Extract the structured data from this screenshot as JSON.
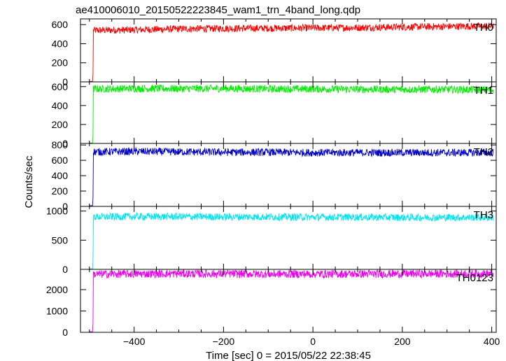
{
  "title": "ae410006010_20150522223845_wam1_trn_4band_long.qdp",
  "chart_data": {
    "type": "line",
    "title": "ae410006010_20150522223845_wam1_trn_4band_long.qdp",
    "xlabel": "Time [sec] 0 = 2015/05/22 22:38:45",
    "ylabel": "Counts/sec",
    "xlim": [
      -520,
      410
    ],
    "x_ticks": [
      -400,
      -200,
      0,
      200,
      400
    ],
    "grid": false,
    "series": [
      {
        "name": "TH0",
        "color": "#ff0000",
        "ylim": [
          0,
          660
        ],
        "y_ticks": [
          0,
          200,
          400,
          600
        ],
        "pre_start_level": 5,
        "onset_time": -492,
        "values": [
          {
            "x": -490,
            "y": 540
          },
          {
            "x": -400,
            "y": 545
          },
          {
            "x": -300,
            "y": 555
          },
          {
            "x": -200,
            "y": 560
          },
          {
            "x": -100,
            "y": 562
          },
          {
            "x": 0,
            "y": 565
          },
          {
            "x": 100,
            "y": 568
          },
          {
            "x": 200,
            "y": 575
          },
          {
            "x": 300,
            "y": 580
          },
          {
            "x": 400,
            "y": 585
          }
        ]
      },
      {
        "name": "TH1",
        "color": "#00ee00",
        "ylim": [
          0,
          650
        ],
        "y_ticks": [
          0,
          200,
          400,
          600
        ],
        "pre_start_level": 5,
        "onset_time": -492,
        "values": [
          {
            "x": -490,
            "y": 575
          },
          {
            "x": -400,
            "y": 580
          },
          {
            "x": -300,
            "y": 578
          },
          {
            "x": -200,
            "y": 580
          },
          {
            "x": -100,
            "y": 575
          },
          {
            "x": 0,
            "y": 575
          },
          {
            "x": 100,
            "y": 572
          },
          {
            "x": 200,
            "y": 570
          },
          {
            "x": 300,
            "y": 570
          },
          {
            "x": 400,
            "y": 565
          }
        ]
      },
      {
        "name": "TH2",
        "color": "#0000cc",
        "ylim": [
          0,
          820
        ],
        "y_ticks": [
          0,
          200,
          400,
          600,
          800
        ],
        "pre_start_level": 10,
        "onset_time": -492,
        "values": [
          {
            "x": -490,
            "y": 710
          },
          {
            "x": -400,
            "y": 715
          },
          {
            "x": -300,
            "y": 710
          },
          {
            "x": -200,
            "y": 705
          },
          {
            "x": -100,
            "y": 705
          },
          {
            "x": 0,
            "y": 700
          },
          {
            "x": 100,
            "y": 700
          },
          {
            "x": 200,
            "y": 700
          },
          {
            "x": 300,
            "y": 700
          },
          {
            "x": 400,
            "y": 700
          }
        ]
      },
      {
        "name": "TH3",
        "color": "#00e5ee",
        "ylim": [
          0,
          1080
        ],
        "y_ticks": [
          0,
          500,
          1000
        ],
        "pre_start_level": 10,
        "onset_time": -492,
        "values": [
          {
            "x": -490,
            "y": 900
          },
          {
            "x": -400,
            "y": 905
          },
          {
            "x": -300,
            "y": 905
          },
          {
            "x": -200,
            "y": 900
          },
          {
            "x": -100,
            "y": 900
          },
          {
            "x": 0,
            "y": 895
          },
          {
            "x": 100,
            "y": 895
          },
          {
            "x": 200,
            "y": 890
          },
          {
            "x": 300,
            "y": 890
          },
          {
            "x": 400,
            "y": 890
          }
        ]
      },
      {
        "name": "TH0123",
        "color": "#ee00ee",
        "ylim": [
          0,
          2950
        ],
        "y_ticks": [
          0,
          1000,
          2000
        ],
        "pre_start_level": 30,
        "onset_time": -492,
        "values": [
          {
            "x": -490,
            "y": 2720
          },
          {
            "x": -400,
            "y": 2740
          },
          {
            "x": -300,
            "y": 2745
          },
          {
            "x": -200,
            "y": 2740
          },
          {
            "x": -100,
            "y": 2730
          },
          {
            "x": 0,
            "y": 2730
          },
          {
            "x": 100,
            "y": 2735
          },
          {
            "x": 200,
            "y": 2740
          },
          {
            "x": 300,
            "y": 2745
          },
          {
            "x": 400,
            "y": 2750
          }
        ]
      }
    ]
  }
}
